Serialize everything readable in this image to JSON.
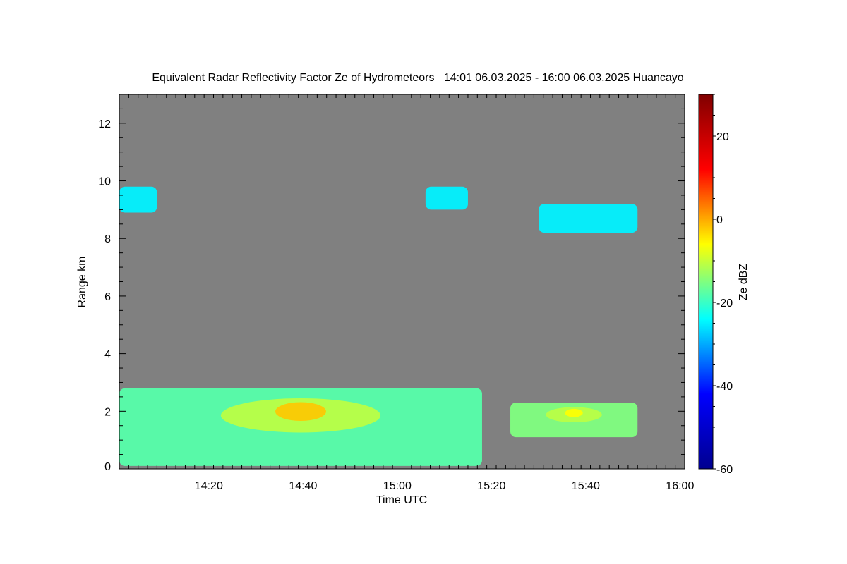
{
  "chart_data": {
    "type": "heatmap",
    "title": "Equivalent Radar Reflectivity Factor Ze of Hydrometeors   14:01 06.03.2025 - 16:00 06.03.2025 Huancayo",
    "xlabel": "Time UTC",
    "ylabel": "Range km",
    "colorbar_label": "Ze dBZ",
    "x_range": [
      "14:01",
      "16:01"
    ],
    "x_ticks": [
      "14:20",
      "14:40",
      "15:00",
      "15:20",
      "15:40",
      "16:00"
    ],
    "y_range": [
      0,
      13
    ],
    "y_ticks": [
      0,
      2,
      4,
      6,
      8,
      10,
      12
    ],
    "colorbar_range": [
      -60,
      30
    ],
    "colorbar_ticks": [
      -60,
      -40,
      -20,
      0,
      20
    ],
    "background_color": "#808080",
    "colormap": [
      "#00008f",
      "#0000ff",
      "#00ffff",
      "#ffff00",
      "#ff0000",
      "#800000"
    ],
    "echo_regions": [
      {
        "name": "upper-cloud-early",
        "time_start": "14:01",
        "time_end": "14:09",
        "range_bottom_km": 8.9,
        "range_top_km": 9.8,
        "typical_ze_dbz": -25
      },
      {
        "name": "upper-cloud-mid",
        "time_start": "15:06",
        "time_end": "15:15",
        "range_bottom_km": 9.0,
        "range_top_km": 9.8,
        "typical_ze_dbz": -25
      },
      {
        "name": "upper-cloud-late",
        "time_start": "15:30",
        "time_end": "15:51",
        "range_bottom_km": 8.2,
        "range_top_km": 9.2,
        "typical_ze_dbz": -25
      },
      {
        "name": "low-precipitation-main",
        "time_start": "14:01",
        "time_end": "15:18",
        "range_bottom_km": 0.1,
        "range_top_km": 2.8,
        "typical_ze_dbz": -18,
        "max_ze_dbz": -2
      },
      {
        "name": "low-precipitation-late",
        "time_start": "15:24",
        "time_end": "15:51",
        "range_bottom_km": 1.1,
        "range_top_km": 2.3,
        "typical_ze_dbz": -15,
        "max_ze_dbz": -6
      }
    ]
  }
}
